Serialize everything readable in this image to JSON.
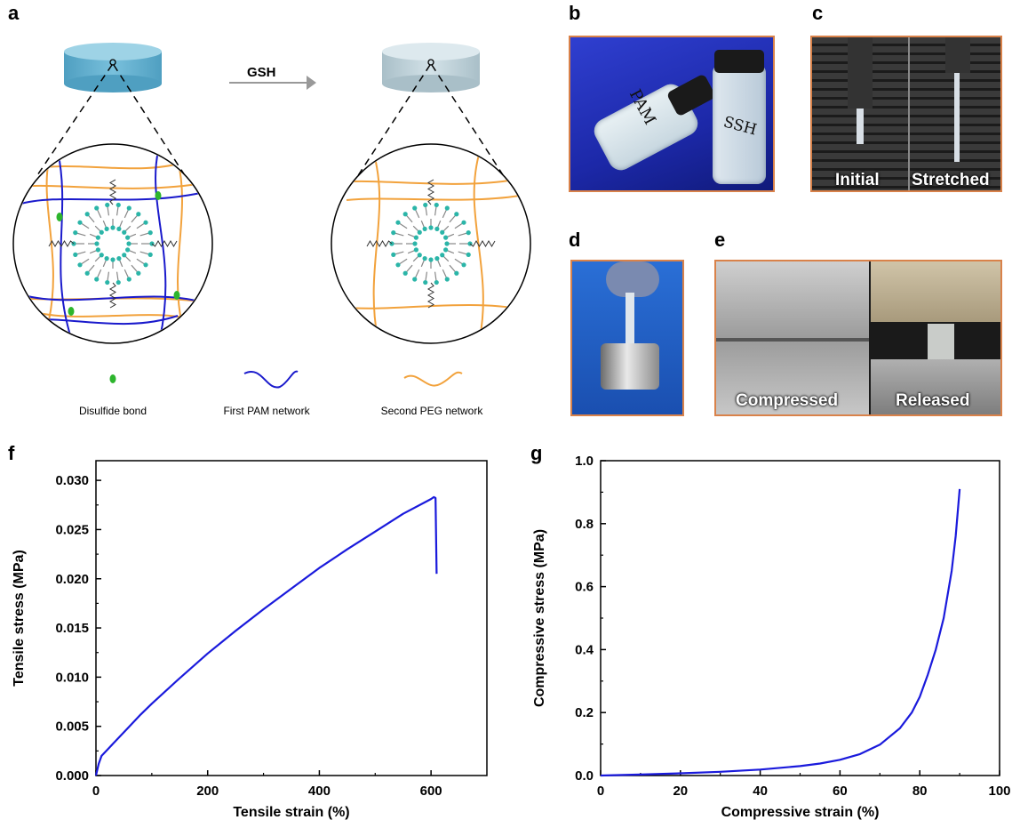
{
  "panels": {
    "a": "a",
    "b": "b",
    "c": "c",
    "d": "d",
    "e": "e",
    "f": "f",
    "g": "g"
  },
  "schematic": {
    "arrow_label": "GSH",
    "legend": {
      "disulfide": "Disulfide bond",
      "first_network": "First PAM network",
      "second_network": "Second PEG network"
    },
    "colors": {
      "pam": "#1a1acc",
      "peg": "#f2a23c",
      "disulfide": "#2db52d",
      "micelle_head": "#2bb5a8",
      "gel_blue": "#5aa9c8",
      "gel_grey": "#b9cdd6"
    }
  },
  "photos": {
    "b": {
      "vial_left": "PAM",
      "vial_right": "SSH"
    },
    "c": {
      "left": "Initial",
      "right": "Stretched"
    },
    "e": {
      "left": "Compressed",
      "right": "Released"
    },
    "frame_color": "#d9824a"
  },
  "chart_data": [
    {
      "panel": "f",
      "type": "line",
      "xlabel": "Tensile strain (%)",
      "ylabel": "Tensile stress (MPa)",
      "xlim": [
        0,
        700
      ],
      "ylim": [
        0,
        0.032
      ],
      "xticks": [
        0,
        200,
        400,
        600
      ],
      "yticks": [
        0.0,
        0.005,
        0.01,
        0.015,
        0.02,
        0.025,
        0.03
      ],
      "ytick_labels": [
        "0.000",
        "0.005",
        "0.010",
        "0.015",
        "0.020",
        "0.025",
        "0.030"
      ],
      "xtick_labels": [
        "0",
        "200",
        "400",
        "600"
      ],
      "color": "#1a1adc",
      "series": [
        {
          "x": [
            0,
            5,
            10,
            20,
            40,
            60,
            80,
            100,
            150,
            200,
            250,
            300,
            350,
            400,
            450,
            500,
            550,
            600,
            605,
            608,
            610
          ],
          "y": [
            0.0,
            0.0012,
            0.002,
            0.0026,
            0.0038,
            0.005,
            0.0062,
            0.0073,
            0.0099,
            0.0124,
            0.0147,
            0.0169,
            0.019,
            0.0211,
            0.023,
            0.0248,
            0.0266,
            0.0281,
            0.0283,
            0.0282,
            0.0205
          ]
        }
      ]
    },
    {
      "panel": "g",
      "type": "line",
      "xlabel": "Compressive strain (%)",
      "ylabel": "Compressive stress (MPa)",
      "xlim": [
        0,
        100
      ],
      "ylim": [
        0,
        1.0
      ],
      "xticks": [
        0,
        20,
        40,
        60,
        80,
        100
      ],
      "yticks": [
        0.0,
        0.2,
        0.4,
        0.6,
        0.8,
        1.0
      ],
      "ytick_labels": [
        "0.0",
        "0.2",
        "0.4",
        "0.6",
        "0.8",
        "1.0"
      ],
      "xtick_labels": [
        "0",
        "20",
        "40",
        "60",
        "80",
        "100"
      ],
      "color": "#1a1adc",
      "series": [
        {
          "x": [
            0,
            10,
            20,
            30,
            40,
            50,
            55,
            60,
            65,
            70,
            75,
            78,
            80,
            82,
            84,
            86,
            88,
            89,
            90
          ],
          "y": [
            0.0,
            0.003,
            0.007,
            0.012,
            0.019,
            0.03,
            0.038,
            0.05,
            0.068,
            0.098,
            0.15,
            0.2,
            0.25,
            0.32,
            0.4,
            0.5,
            0.65,
            0.76,
            0.91
          ]
        }
      ]
    }
  ]
}
